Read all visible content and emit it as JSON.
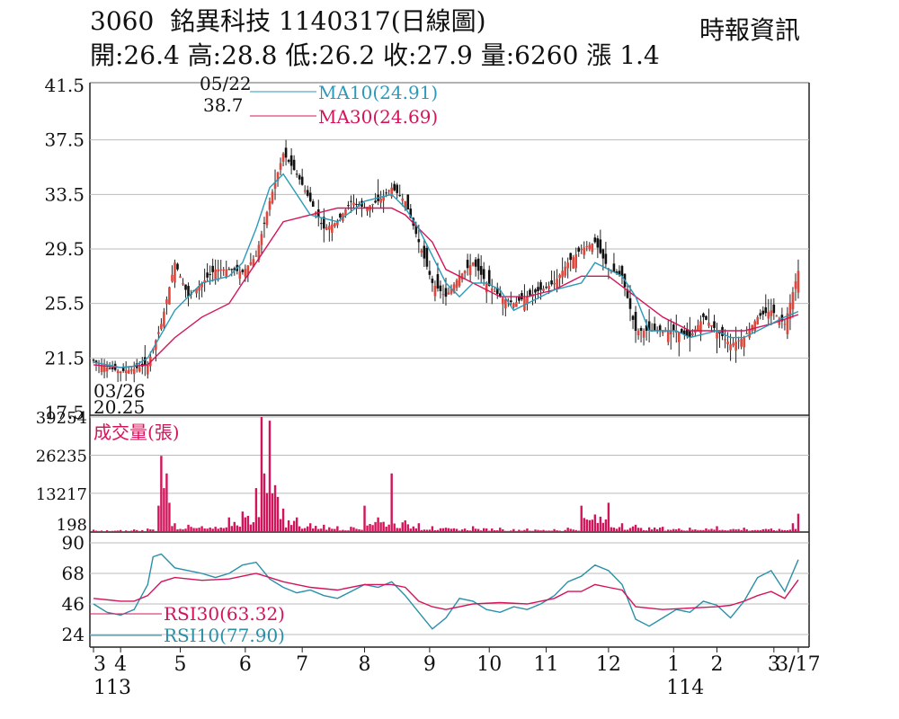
{
  "header": {
    "code": "3060",
    "name": "銘異科技",
    "date_title": "1140317(日線圖)",
    "source": "時報資訊",
    "ohlc_line": "開:26.4 高:28.8 低:26.2 收:27.9 量:6260 漲 1.4"
  },
  "colors": {
    "up_candle": "#e0463c",
    "down_candle": "#111111",
    "ma10": "#2a9ab8",
    "ma30": "#d4145a",
    "volume": "#d4145a",
    "rsi30": "#d4145a",
    "rsi10": "#2a8fa8",
    "grid": "#bbbbbb"
  },
  "chart_data": [
    {
      "type": "candlestick",
      "ylim": [
        17.5,
        41.5
      ],
      "yticks": [
        "41.5",
        "37.5",
        "33.5",
        "29.5",
        "25.5",
        "21.5",
        "17.5"
      ],
      "legend": [
        {
          "key": "ma10",
          "label": "MA10(24.91)"
        },
        {
          "key": "ma30",
          "label": "MA30(24.69)"
        }
      ],
      "annotations": {
        "high_date": "05/22",
        "high_value": "38.7",
        "low_date": "03/26",
        "low_value": "20.25"
      },
      "series": [
        {
          "name": "price",
          "x": [
            0,
            5,
            10,
            15,
            20,
            25,
            30,
            35,
            40,
            45,
            50,
            55,
            60,
            65,
            70,
            75,
            80,
            85,
            90,
            95,
            100,
            105,
            110,
            115,
            120,
            125,
            130,
            135,
            140,
            145,
            150,
            155,
            160,
            165,
            170,
            175,
            180,
            185,
            190,
            195,
            200,
            205,
            210,
            215,
            220,
            225,
            230,
            235,
            240,
            245,
            250,
            255,
            260
          ],
          "close": [
            21.3,
            20.8,
            20.5,
            20.7,
            21.0,
            24.0,
            28.5,
            26.0,
            27.0,
            28.0,
            28.0,
            27.8,
            29.0,
            33.0,
            36.5,
            35.0,
            33.0,
            31.0,
            31.5,
            33.0,
            32.5,
            33.0,
            34.0,
            33.0,
            30.0,
            27.0,
            26.0,
            27.5,
            28.5,
            27.0,
            26.0,
            25.5,
            26.0,
            26.5,
            27.0,
            28.5,
            29.5,
            30.0,
            28.0,
            27.5,
            23.5,
            23.5,
            23.5,
            23.5,
            23.0,
            24.5,
            23.5,
            22.5,
            23.0,
            24.5,
            25.0,
            24.0,
            27.9
          ]
        },
        {
          "name": "MA10",
          "x": [
            0,
            10,
            15,
            20,
            30,
            40,
            50,
            55,
            60,
            65,
            70,
            80,
            90,
            100,
            110,
            115,
            120,
            125,
            130,
            135,
            140,
            145,
            150,
            155,
            160,
            170,
            180,
            185,
            190,
            195,
            200,
            205,
            210,
            215,
            220,
            230,
            235,
            240,
            250,
            255,
            260
          ],
          "values": [
            21.2,
            20.8,
            20.9,
            21.5,
            25.0,
            27.0,
            27.5,
            28.5,
            31.0,
            34.0,
            35.0,
            32.0,
            31.5,
            33.0,
            33.5,
            32.5,
            31.0,
            29.0,
            27.0,
            26.0,
            27.0,
            27.0,
            26.5,
            25.0,
            25.5,
            26.5,
            27.0,
            28.5,
            28.0,
            27.5,
            26.0,
            23.5,
            23.5,
            23.5,
            23.0,
            23.5,
            23.0,
            23.0,
            24.0,
            24.5,
            24.91
          ]
        },
        {
          "name": "MA30",
          "x": [
            0,
            10,
            20,
            30,
            40,
            50,
            55,
            60,
            65,
            70,
            80,
            90,
            100,
            110,
            115,
            120,
            125,
            130,
            140,
            150,
            160,
            170,
            180,
            190,
            200,
            210,
            220,
            230,
            240,
            250,
            260
          ],
          "values": [
            21.0,
            20.8,
            21.0,
            23.0,
            24.5,
            25.5,
            27.0,
            28.5,
            30.0,
            31.5,
            32.0,
            32.5,
            32.5,
            32.5,
            32.0,
            31.0,
            30.0,
            28.0,
            27.0,
            26.0,
            26.0,
            26.5,
            27.5,
            27.5,
            26.0,
            24.5,
            23.5,
            23.5,
            23.5,
            24.0,
            24.69
          ]
        }
      ]
    },
    {
      "type": "bar",
      "title": "成交量(張)",
      "yticks": [
        "39254",
        "26235",
        "13217",
        "198"
      ],
      "ylim": [
        0,
        39254
      ],
      "x": [
        0,
        5,
        10,
        15,
        20,
        24,
        25,
        26,
        27,
        28,
        30,
        35,
        40,
        45,
        50,
        55,
        60,
        62,
        63,
        65,
        67,
        68,
        70,
        75,
        80,
        85,
        90,
        95,
        100,
        105,
        110,
        115,
        120,
        125,
        130,
        140,
        150,
        160,
        170,
        175,
        180,
        185,
        190,
        195,
        200,
        210,
        220,
        230,
        240,
        250,
        258,
        260
      ],
      "values": [
        800,
        600,
        700,
        900,
        1200,
        9000,
        26000,
        15000,
        20000,
        10000,
        3000,
        2500,
        2000,
        1800,
        5000,
        7000,
        15000,
        39254,
        20000,
        38000,
        16000,
        12000,
        8000,
        5000,
        3000,
        2500,
        2000,
        1800,
        9000,
        5000,
        20000,
        4000,
        3000,
        2000,
        1500,
        2000,
        1500,
        1200,
        1000,
        1500,
        9000,
        6000,
        10000,
        3000,
        2500,
        1800,
        1500,
        2000,
        1500,
        1200,
        3000,
        6260
      ]
    },
    {
      "type": "line",
      "yticks": [
        "90",
        "68",
        "46",
        "24"
      ],
      "ylim": [
        24,
        90
      ],
      "legend": [
        {
          "key": "rsi30",
          "label": "RSI30(63.32)"
        },
        {
          "key": "rsi10",
          "label": "RSI10(77.90)"
        }
      ],
      "series": [
        {
          "name": "RSI30",
          "x": [
            0,
            10,
            15,
            20,
            25,
            30,
            40,
            50,
            55,
            60,
            65,
            70,
            80,
            90,
            100,
            110,
            115,
            120,
            125,
            130,
            140,
            150,
            160,
            170,
            175,
            180,
            185,
            190,
            195,
            200,
            210,
            220,
            230,
            235,
            240,
            245,
            250,
            255,
            260
          ],
          "values": [
            50,
            48,
            48,
            52,
            62,
            65,
            63,
            64,
            66,
            68,
            65,
            62,
            58,
            56,
            60,
            60,
            58,
            48,
            44,
            42,
            46,
            47,
            46,
            50,
            55,
            55,
            60,
            58,
            56,
            44,
            42,
            43,
            44,
            45,
            48,
            52,
            55,
            50,
            63.32
          ]
        },
        {
          "name": "RSI10",
          "x": [
            0,
            5,
            10,
            15,
            20,
            22,
            25,
            30,
            35,
            40,
            45,
            50,
            55,
            60,
            65,
            70,
            75,
            80,
            85,
            90,
            95,
            100,
            105,
            110,
            115,
            120,
            125,
            130,
            135,
            140,
            145,
            150,
            155,
            160,
            165,
            170,
            175,
            180,
            185,
            190,
            195,
            200,
            205,
            210,
            215,
            220,
            225,
            230,
            235,
            240,
            245,
            250,
            255,
            260
          ],
          "values": [
            46,
            40,
            38,
            42,
            60,
            80,
            82,
            72,
            70,
            68,
            65,
            68,
            74,
            76,
            64,
            58,
            54,
            56,
            52,
            50,
            55,
            60,
            58,
            62,
            52,
            40,
            28,
            36,
            50,
            48,
            42,
            40,
            44,
            42,
            46,
            52,
            62,
            66,
            74,
            70,
            60,
            35,
            30,
            36,
            42,
            40,
            48,
            45,
            36,
            48,
            65,
            70,
            55,
            77.9
          ]
        }
      ]
    }
  ],
  "x_axis": {
    "month_labels": [
      {
        "x": 0,
        "label": "3"
      },
      {
        "x": 10,
        "label": "4"
      },
      {
        "x": 32,
        "label": "5"
      },
      {
        "x": 56,
        "label": "6"
      },
      {
        "x": 77,
        "label": "7"
      },
      {
        "x": 100,
        "label": "8"
      },
      {
        "x": 124,
        "label": "9"
      },
      {
        "x": 146,
        "label": "10"
      },
      {
        "x": 167,
        "label": "11"
      },
      {
        "x": 190,
        "label": "12"
      },
      {
        "x": 214,
        "label": "1"
      },
      {
        "x": 230,
        "label": "2"
      },
      {
        "x": 251,
        "label": "3"
      },
      {
        "x": 260,
        "label": "3/17"
      }
    ],
    "year_labels": [
      {
        "x": 0,
        "label": "113"
      },
      {
        "x": 214,
        "label": "114"
      }
    ]
  }
}
